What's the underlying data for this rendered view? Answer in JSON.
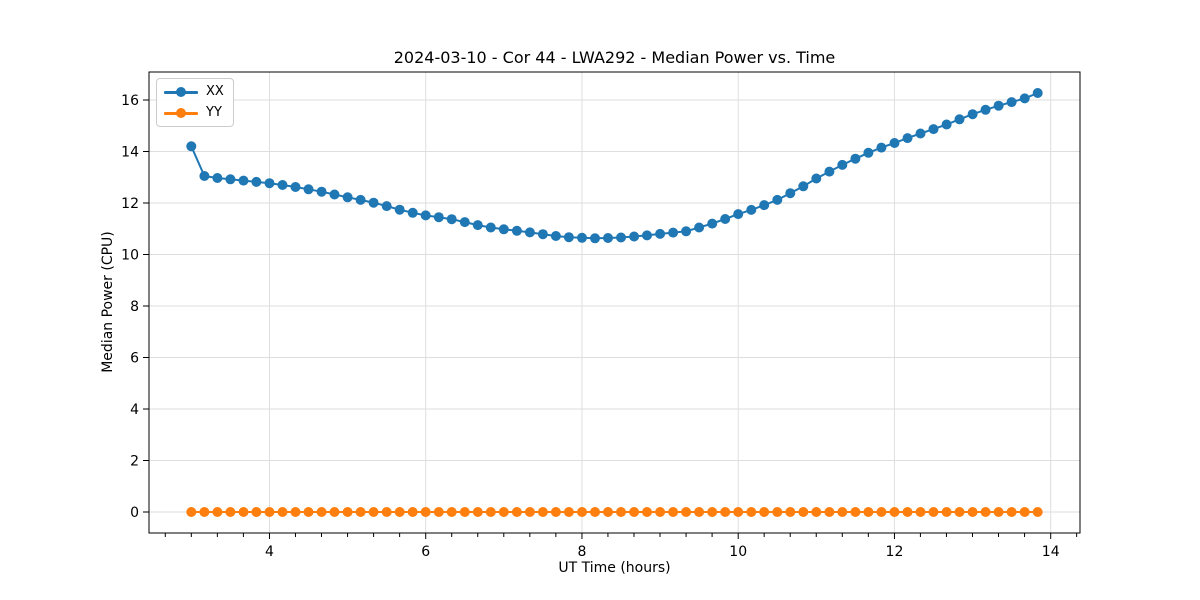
{
  "chart_data": {
    "type": "line",
    "title": "2024-03-10 - Cor 44 - LWA292 - Median Power vs. Time",
    "xlabel": "UT Time (hours)",
    "ylabel": "Median Power (CPU)",
    "xlim": [
      2.458,
      14.375
    ],
    "ylim": [
      -0.815,
      17.087
    ],
    "xticks": [
      4,
      6,
      8,
      10,
      12,
      14
    ],
    "yticks": [
      0,
      2,
      4,
      6,
      8,
      10,
      12,
      14,
      16
    ],
    "x_minor_step": 0.3333,
    "grid": "major",
    "grid_color": "#dedede",
    "axis_color": "#000000",
    "legend_position": "upper-left",
    "x": [
      3.0,
      3.167,
      3.333,
      3.5,
      3.667,
      3.833,
      4.0,
      4.167,
      4.333,
      4.5,
      4.667,
      4.833,
      5.0,
      5.167,
      5.333,
      5.5,
      5.667,
      5.833,
      6.0,
      6.167,
      6.333,
      6.5,
      6.667,
      6.833,
      7.0,
      7.167,
      7.333,
      7.5,
      7.667,
      7.833,
      8.0,
      8.167,
      8.333,
      8.5,
      8.667,
      8.833,
      9.0,
      9.167,
      9.333,
      9.5,
      9.667,
      9.833,
      10.0,
      10.167,
      10.333,
      10.5,
      10.667,
      10.833,
      11.0,
      11.167,
      11.333,
      11.5,
      11.667,
      11.833,
      12.0,
      12.167,
      12.333,
      12.5,
      12.667,
      12.833,
      13.0,
      13.167,
      13.333,
      13.5,
      13.667,
      13.833
    ],
    "series": [
      {
        "name": "XX",
        "color": "#1f77b4",
        "values": [
          14.2,
          13.05,
          12.97,
          12.92,
          12.87,
          12.82,
          12.77,
          12.7,
          12.62,
          12.53,
          12.44,
          12.33,
          12.22,
          12.12,
          12.01,
          11.88,
          11.74,
          11.62,
          11.52,
          11.45,
          11.37,
          11.26,
          11.14,
          11.05,
          10.98,
          10.92,
          10.86,
          10.79,
          10.72,
          10.67,
          10.65,
          10.63,
          10.64,
          10.66,
          10.7,
          10.74,
          10.8,
          10.85,
          10.9,
          11.05,
          11.2,
          11.38,
          11.57,
          11.73,
          11.92,
          12.12,
          12.38,
          12.65,
          12.95,
          13.22,
          13.48,
          13.72,
          13.95,
          14.15,
          14.33,
          14.52,
          14.7,
          14.87,
          15.05,
          15.25,
          15.45,
          15.62,
          15.78,
          15.92,
          16.06,
          16.27
        ]
      },
      {
        "name": "YY",
        "color": "#ff7f0e",
        "values": [
          0,
          0,
          0,
          0,
          0,
          0,
          0,
          0,
          0,
          0,
          0,
          0,
          0,
          0,
          0,
          0,
          0,
          0,
          0,
          0,
          0,
          0,
          0,
          0,
          0,
          0,
          0,
          0,
          0,
          0,
          0,
          0,
          0,
          0,
          0,
          0,
          0,
          0,
          0,
          0,
          0,
          0,
          0,
          0,
          0,
          0,
          0,
          0,
          0,
          0,
          0,
          0,
          0,
          0,
          0,
          0,
          0,
          0,
          0,
          0,
          0,
          0,
          0,
          0,
          0,
          0
        ]
      }
    ]
  }
}
